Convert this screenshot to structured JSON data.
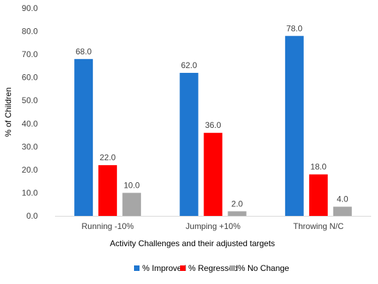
{
  "chart_data": {
    "type": "bar",
    "title": "",
    "xlabel": "Activity Challenges and their adjusted targets",
    "ylabel": "% of Children",
    "ylim": [
      0,
      90
    ],
    "ytick_step": 10,
    "ytick_labels": [
      "0.0",
      "10.0",
      "20.0",
      "30.0",
      "40.0",
      "50.0",
      "60.0",
      "70.0",
      "80.0",
      "90.0"
    ],
    "grid": false,
    "legend_position": "bottom",
    "categories": [
      "Running -10%",
      "Jumping +10%",
      "Throwing N/C"
    ],
    "series": [
      {
        "name": "% Improved",
        "color": "#1F77D0",
        "values": [
          68.0,
          62.0,
          78.0
        ],
        "labels": [
          "68.0",
          "62.0",
          "78.0"
        ]
      },
      {
        "name": "% Regressed",
        "color": "#FF0000",
        "values": [
          22.0,
          36.0,
          18.0
        ],
        "labels": [
          "22.0",
          "36.0",
          "18.0"
        ]
      },
      {
        "name": "% No Change",
        "color": "#A6A6A6",
        "values": [
          10.0,
          2.0,
          4.0
        ],
        "labels": [
          "10.0",
          "2.0",
          "4.0"
        ]
      }
    ]
  }
}
